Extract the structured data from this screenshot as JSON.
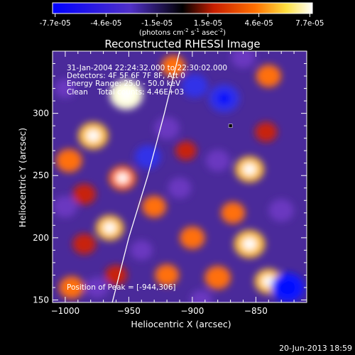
{
  "colorbar": {
    "ticks": [
      "-7.7e-05",
      "-4.6e-05",
      "-1.5e-05",
      "1.5e-05",
      "4.6e-05",
      "7.7e-05"
    ],
    "units_main": "(photons cm",
    "units_exp1": "-2",
    "units_mid": " s",
    "units_exp2": "-1",
    "units_end": " asec",
    "units_exp3": "-2",
    "units_close": ")"
  },
  "chart_data": {
    "type": "heatmap",
    "title": "Reconstructed RHESSI Image",
    "xlabel": "Heliocentric X (arcsec)",
    "ylabel": "Heliocentric Y (arcsec)",
    "xlim": [
      -1010,
      -810
    ],
    "ylim": [
      148,
      350
    ],
    "x_ticks": [
      -1000,
      -950,
      -900,
      -850
    ],
    "y_ticks": [
      150,
      200,
      250,
      300
    ],
    "x_tick_labels": [
      "−1000",
      "−950",
      "−900",
      "−850"
    ],
    "y_tick_labels": [
      "150",
      "200",
      "250",
      "300"
    ],
    "color_range": [
      -7.7e-05,
      7.7e-05
    ],
    "peak": [
      -944,
      306
    ],
    "annotations": {
      "time": "31-Jan-2004 22:24:32.000 to 22:30:02.000",
      "detectors": "Detectors: 4F 5F 6F 7F 8F, Att 0",
      "energy": "Energy Range: 25.0 - 50.0 keV",
      "clean": "Clean    Total counts: 4.46E+03",
      "peak_label": "Position of Peak = [-944,306]"
    },
    "limb_curve": [
      [
        -963,
        148
      ],
      [
        -950,
        200
      ],
      [
        -935,
        250
      ],
      [
        -922,
        300
      ],
      [
        -910,
        350
      ]
    ],
    "marker": [
      -870,
      290
    ],
    "blobs": [
      {
        "x": -952,
        "y": 315,
        "v": 0.95
      },
      {
        "x": -978,
        "y": 282,
        "v": 0.8
      },
      {
        "x": -997,
        "y": 262,
        "v": 0.6
      },
      {
        "x": -985,
        "y": 235,
        "v": 0.45
      },
      {
        "x": -915,
        "y": 338,
        "v": 0.5
      },
      {
        "x": -840,
        "y": 330,
        "v": 0.55
      },
      {
        "x": -855,
        "y": 255,
        "v": 0.75
      },
      {
        "x": -842,
        "y": 285,
        "v": 0.4
      },
      {
        "x": -905,
        "y": 270,
        "v": 0.35
      },
      {
        "x": -955,
        "y": 248,
        "v": 0.65
      },
      {
        "x": -930,
        "y": 225,
        "v": 0.5
      },
      {
        "x": -965,
        "y": 208,
        "v": 0.7
      },
      {
        "x": -985,
        "y": 195,
        "v": 0.45
      },
      {
        "x": -900,
        "y": 200,
        "v": 0.55
      },
      {
        "x": -868,
        "y": 220,
        "v": 0.5
      },
      {
        "x": -855,
        "y": 195,
        "v": 0.85
      },
      {
        "x": -840,
        "y": 165,
        "v": 0.7
      },
      {
        "x": -880,
        "y": 168,
        "v": 0.6
      },
      {
        "x": -920,
        "y": 170,
        "v": 0.5
      },
      {
        "x": -960,
        "y": 170,
        "v": 0.4
      },
      {
        "x": -995,
        "y": 160,
        "v": 0.55
      },
      {
        "x": -875,
        "y": 312,
        "v": -0.85
      },
      {
        "x": -898,
        "y": 322,
        "v": -0.6
      },
      {
        "x": -880,
        "y": 262,
        "v": -0.5
      },
      {
        "x": -920,
        "y": 288,
        "v": -0.55
      },
      {
        "x": -935,
        "y": 265,
        "v": -0.6
      },
      {
        "x": -1000,
        "y": 225,
        "v": -0.5
      },
      {
        "x": -975,
        "y": 160,
        "v": -0.45
      },
      {
        "x": -825,
        "y": 160,
        "v": -0.95
      },
      {
        "x": -830,
        "y": 222,
        "v": -0.55
      },
      {
        "x": -910,
        "y": 240,
        "v": -0.45
      },
      {
        "x": -940,
        "y": 190,
        "v": -0.4
      },
      {
        "x": -860,
        "y": 345,
        "v": -0.5
      },
      {
        "x": -1000,
        "y": 320,
        "v": -0.35
      },
      {
        "x": -893,
        "y": 150,
        "v": -0.4
      }
    ]
  },
  "footer": {
    "date": "20-Jun-2013 18:59"
  }
}
